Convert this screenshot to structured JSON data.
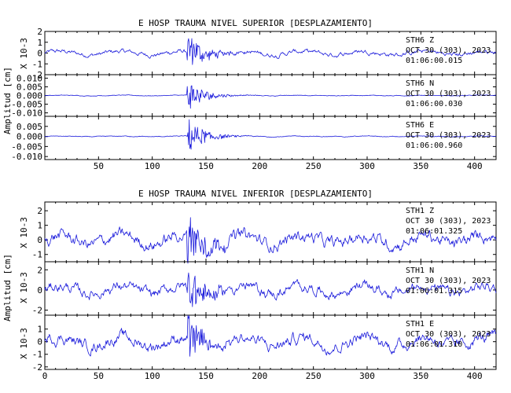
{
  "chart_data": [
    {
      "type": "line",
      "title": "E HOSP TRAUMA NIVEL SUPERIOR [DESPLAZAMIENTO]",
      "ylabel": "Amplitud [cm]",
      "xlim": [
        0,
        420
      ],
      "x_ticks": [
        50,
        100,
        150,
        200,
        250,
        300,
        350,
        400
      ],
      "grid": false,
      "series": [
        {
          "station": "STH6",
          "component": "Z",
          "date": "OCT 30 (303), 2023",
          "time": "01:06:00.015",
          "scale_label": "X 10-3",
          "ylim": [
            -2,
            2
          ],
          "y_ticks": [
            "2",
            "1",
            "0",
            "-1",
            "-2"
          ],
          "y_tick_values": [
            2,
            1,
            0,
            -1,
            -2
          ],
          "event_onset": 132,
          "peak_amplitude": 1.9,
          "noise_amplitude": 0.45,
          "baseline": 0.0
        },
        {
          "station": "STH6",
          "component": "N",
          "date": "OCT 30 (303), 2023",
          "time": "01:06:00.030",
          "scale_label": "",
          "ylim": [
            -0.012,
            0.012
          ],
          "y_ticks": [
            "0.010",
            "0.005",
            "0.000",
            "-0.005",
            "-0.010"
          ],
          "y_tick_values": [
            0.01,
            0.005,
            0.0,
            -0.005,
            -0.01
          ],
          "event_onset": 132,
          "peak_amplitude": 0.01,
          "noise_amplitude": 0.0004,
          "baseline": 0.0
        },
        {
          "station": "STH6",
          "component": "E",
          "date": "OCT 30 (303), 2023",
          "time": "01:06:00.960",
          "scale_label": "",
          "ylim": [
            -0.0115,
            0.01
          ],
          "y_ticks": [
            "0.005",
            "0.000",
            "-0.005",
            "-0.010"
          ],
          "y_tick_values": [
            0.005,
            0.0,
            -0.005,
            -0.01
          ],
          "event_onset": 132,
          "peak_amplitude": 0.01,
          "noise_amplitude": 0.0004,
          "baseline": 0.0
        }
      ]
    },
    {
      "type": "line",
      "title": "E HOSP TRAUMA NIVEL INFERIOR [DESPLAZAMIENTO]",
      "ylabel": "Amplitud [cm]",
      "xlim": [
        0,
        420
      ],
      "x_ticks": [
        0,
        50,
        100,
        150,
        200,
        250,
        300,
        350,
        400
      ],
      "grid": false,
      "series": [
        {
          "station": "STH1",
          "component": "Z",
          "date": "OCT 30 (303), 2023",
          "time": "01:06:01.325",
          "scale_label": "X 10-3",
          "ylim": [
            -1.5,
            2.6
          ],
          "y_ticks": [
            "2",
            "1",
            "0",
            "-1"
          ],
          "y_tick_values": [
            2,
            1,
            0,
            -1
          ],
          "event_onset": 132,
          "peak_amplitude": 2.4,
          "noise_amplitude": 0.9,
          "baseline": 0.0
        },
        {
          "station": "STH1",
          "component": "N",
          "date": "OCT 30 (303), 2023",
          "time": "01:06:01.315",
          "scale_label": "X 10-3",
          "ylim": [
            -2.5,
            2.8
          ],
          "y_ticks": [
            "2",
            "0",
            "-2"
          ],
          "y_tick_values": [
            2,
            0,
            -2
          ],
          "event_onset": 132,
          "peak_amplitude": 2.6,
          "noise_amplitude": 1.1,
          "baseline": 0.0
        },
        {
          "station": "STH1",
          "component": "E",
          "date": "OCT 30 (303), 2023",
          "time": "01:06:01.310",
          "scale_label": "X 10-3",
          "ylim": [
            -2.2,
            2.1
          ],
          "y_ticks": [
            "1",
            "0",
            "-1",
            "-2"
          ],
          "y_tick_values": [
            1,
            0,
            -1,
            -2
          ],
          "event_onset": 132,
          "peak_amplitude": 1.9,
          "noise_amplitude": 1.0,
          "baseline": 0.0
        }
      ]
    }
  ]
}
